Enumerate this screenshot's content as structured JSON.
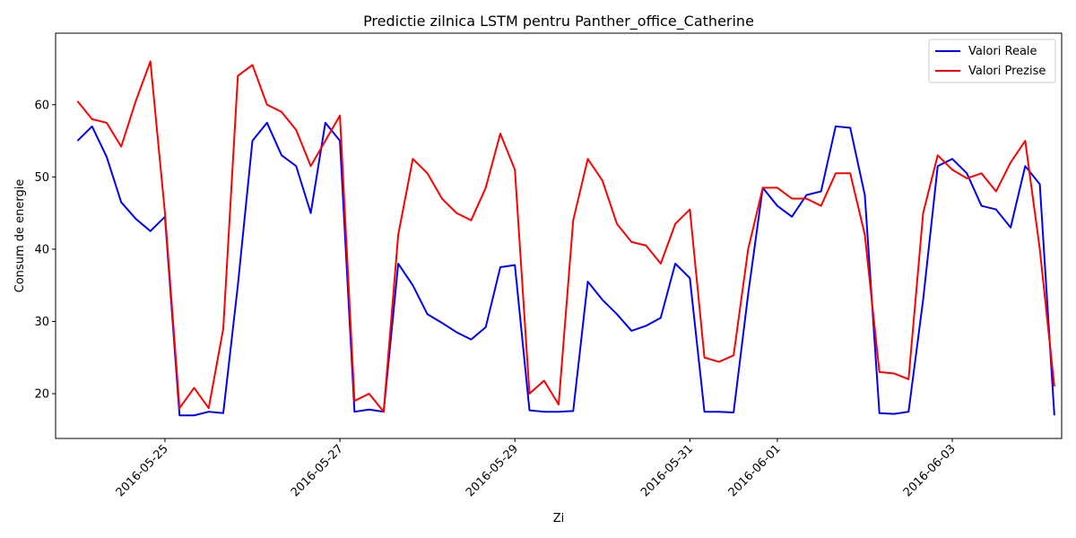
{
  "chart_data": {
    "type": "line",
    "title": "Predictie zilnica LSTM pentru Panther_office_Catherine",
    "xlabel": "Zi",
    "ylabel": "Consum de energie",
    "x_ticks": [
      "2016-05-25",
      "2016-05-27",
      "2016-05-29",
      "2016-05-31",
      "2016-06-01",
      "2016-06-03"
    ],
    "x_range": [
      "2016-05-23T18:00",
      "2016-06-04T06:00"
    ],
    "y_ticks": [
      20,
      30,
      40,
      50,
      60
    ],
    "ylim": [
      13.8,
      69.9
    ],
    "grid": false,
    "legend": "upper right",
    "series": [
      {
        "name": "Valori Reale",
        "color": "#0000ff",
        "points": [
          [
            "2016-05-24T00:00",
            55.0
          ],
          [
            "2016-05-24T04:00",
            57.0
          ],
          [
            "2016-05-24T08:00",
            52.8
          ],
          [
            "2016-05-24T12:00",
            46.5
          ],
          [
            "2016-05-24T16:00",
            44.2
          ],
          [
            "2016-05-24T20:00",
            42.5
          ],
          [
            "2016-05-25T00:00",
            44.5
          ],
          [
            "2016-05-25T04:00",
            17.0
          ],
          [
            "2016-05-25T08:00",
            17.0
          ],
          [
            "2016-05-25T12:00",
            17.5
          ],
          [
            "2016-05-25T16:00",
            17.3
          ],
          [
            "2016-05-25T20:00",
            35.0
          ],
          [
            "2016-05-26T00:00",
            55.0
          ],
          [
            "2016-05-26T04:00",
            57.5
          ],
          [
            "2016-05-26T08:00",
            53.0
          ],
          [
            "2016-05-26T12:00",
            51.5
          ],
          [
            "2016-05-26T16:00",
            45.0
          ],
          [
            "2016-05-26T20:00",
            57.5
          ],
          [
            "2016-05-27T00:00",
            55.0
          ],
          [
            "2016-05-27T04:00",
            17.5
          ],
          [
            "2016-05-27T08:00",
            17.8
          ],
          [
            "2016-05-27T12:00",
            17.5
          ],
          [
            "2016-05-27T16:00",
            38.0
          ],
          [
            "2016-05-27T20:00",
            35.0
          ],
          [
            "2016-05-28T00:00",
            31.0
          ],
          [
            "2016-05-28T04:00",
            29.8
          ],
          [
            "2016-05-28T08:00",
            28.5
          ],
          [
            "2016-05-28T12:00",
            27.5
          ],
          [
            "2016-05-28T16:00",
            29.2
          ],
          [
            "2016-05-28T20:00",
            37.5
          ],
          [
            "2016-05-29T00:00",
            37.8
          ],
          [
            "2016-05-29T04:00",
            17.7
          ],
          [
            "2016-05-29T08:00",
            17.5
          ],
          [
            "2016-05-29T12:00",
            17.5
          ],
          [
            "2016-05-29T16:00",
            17.6
          ],
          [
            "2016-05-29T20:00",
            35.5
          ],
          [
            "2016-05-30T00:00",
            33.0
          ],
          [
            "2016-05-30T04:00",
            31.0
          ],
          [
            "2016-05-30T08:00",
            28.7
          ],
          [
            "2016-05-30T12:00",
            29.4
          ],
          [
            "2016-05-30T16:00",
            30.5
          ],
          [
            "2016-05-30T20:00",
            38.0
          ],
          [
            "2016-05-31T00:00",
            36.0
          ],
          [
            "2016-05-31T04:00",
            17.5
          ],
          [
            "2016-05-31T08:00",
            17.5
          ],
          [
            "2016-05-31T12:00",
            17.4
          ],
          [
            "2016-05-31T16:00",
            33.8
          ],
          [
            "2016-05-31T20:00",
            48.5
          ],
          [
            "2016-06-01T00:00",
            46.0
          ],
          [
            "2016-06-01T04:00",
            44.5
          ],
          [
            "2016-06-01T08:00",
            47.5
          ],
          [
            "2016-06-01T12:00",
            48.0
          ],
          [
            "2016-06-01T16:00",
            57.0
          ],
          [
            "2016-06-01T20:00",
            56.8
          ],
          [
            "2016-06-02T00:00",
            47.5
          ],
          [
            "2016-06-02T04:00",
            17.3
          ],
          [
            "2016-06-02T08:00",
            17.2
          ],
          [
            "2016-06-02T12:00",
            17.5
          ],
          [
            "2016-06-02T16:00",
            33.0
          ],
          [
            "2016-06-02T20:00",
            51.5
          ],
          [
            "2016-06-03T00:00",
            52.5
          ],
          [
            "2016-06-03T04:00",
            50.5
          ],
          [
            "2016-06-03T08:00",
            46.0
          ],
          [
            "2016-06-03T12:00",
            45.5
          ],
          [
            "2016-06-03T16:00",
            43.0
          ],
          [
            "2016-06-03T20:00",
            51.5
          ],
          [
            "2016-06-04T00:00",
            49.0
          ],
          [
            "2016-06-04T04:00",
            17.0
          ]
        ]
      },
      {
        "name": "Valori Prezise",
        "color": "#ff0000",
        "points": [
          [
            "2016-05-24T00:00",
            60.5
          ],
          [
            "2016-05-24T04:00",
            58.0
          ],
          [
            "2016-05-24T08:00",
            57.5
          ],
          [
            "2016-05-24T12:00",
            54.2
          ],
          [
            "2016-05-24T16:00",
            60.5
          ],
          [
            "2016-05-24T20:00",
            66.0
          ],
          [
            "2016-05-25T00:00",
            45.0
          ],
          [
            "2016-05-25T04:00",
            18.0
          ],
          [
            "2016-05-25T08:00",
            20.8
          ],
          [
            "2016-05-25T12:00",
            18.0
          ],
          [
            "2016-05-25T16:00",
            29.0
          ],
          [
            "2016-05-25T20:00",
            64.0
          ],
          [
            "2016-05-26T00:00",
            65.5
          ],
          [
            "2016-05-26T04:00",
            60.0
          ],
          [
            "2016-05-26T08:00",
            59.0
          ],
          [
            "2016-05-26T12:00",
            56.5
          ],
          [
            "2016-05-26T16:00",
            51.5
          ],
          [
            "2016-05-26T20:00",
            55.0
          ],
          [
            "2016-05-27T00:00",
            58.5
          ],
          [
            "2016-05-27T04:00",
            19.0
          ],
          [
            "2016-05-27T08:00",
            20.0
          ],
          [
            "2016-05-27T12:00",
            17.5
          ],
          [
            "2016-05-27T16:00",
            42.0
          ],
          [
            "2016-05-27T20:00",
            52.5
          ],
          [
            "2016-05-28T00:00",
            50.5
          ],
          [
            "2016-05-28T04:00",
            47.0
          ],
          [
            "2016-05-28T08:00",
            45.0
          ],
          [
            "2016-05-28T12:00",
            44.0
          ],
          [
            "2016-05-28T16:00",
            48.5
          ],
          [
            "2016-05-28T20:00",
            56.0
          ],
          [
            "2016-05-29T00:00",
            51.0
          ],
          [
            "2016-05-29T04:00",
            20.0
          ],
          [
            "2016-05-29T08:00",
            21.8
          ],
          [
            "2016-05-29T12:00",
            18.5
          ],
          [
            "2016-05-29T16:00",
            44.0
          ],
          [
            "2016-05-29T20:00",
            52.5
          ],
          [
            "2016-05-30T00:00",
            49.5
          ],
          [
            "2016-05-30T04:00",
            43.5
          ],
          [
            "2016-05-30T08:00",
            41.0
          ],
          [
            "2016-05-30T12:00",
            40.5
          ],
          [
            "2016-05-30T16:00",
            38.0
          ],
          [
            "2016-05-30T20:00",
            43.5
          ],
          [
            "2016-05-31T00:00",
            45.5
          ],
          [
            "2016-05-31T04:00",
            25.0
          ],
          [
            "2016-05-31T08:00",
            24.4
          ],
          [
            "2016-05-31T12:00",
            25.3
          ],
          [
            "2016-05-31T16:00",
            40.0
          ],
          [
            "2016-05-31T20:00",
            48.5
          ],
          [
            "2016-06-01T00:00",
            48.5
          ],
          [
            "2016-06-01T04:00",
            47.0
          ],
          [
            "2016-06-01T08:00",
            47.0
          ],
          [
            "2016-06-01T12:00",
            46.0
          ],
          [
            "2016-06-01T16:00",
            50.5
          ],
          [
            "2016-06-01T20:00",
            50.5
          ],
          [
            "2016-06-02T00:00",
            42.0
          ],
          [
            "2016-06-02T04:00",
            23.0
          ],
          [
            "2016-06-02T08:00",
            22.8
          ],
          [
            "2016-06-02T12:00",
            22.0
          ],
          [
            "2016-06-02T16:00",
            45.0
          ],
          [
            "2016-06-02T20:00",
            53.0
          ],
          [
            "2016-06-03T00:00",
            51.0
          ],
          [
            "2016-06-03T04:00",
            49.8
          ],
          [
            "2016-06-03T08:00",
            50.5
          ],
          [
            "2016-06-03T12:00",
            48.0
          ],
          [
            "2016-06-03T16:00",
            52.0
          ],
          [
            "2016-06-03T20:00",
            55.0
          ],
          [
            "2016-06-04T00:00",
            40.0
          ],
          [
            "2016-06-04T04:00",
            21.0
          ]
        ]
      }
    ]
  }
}
